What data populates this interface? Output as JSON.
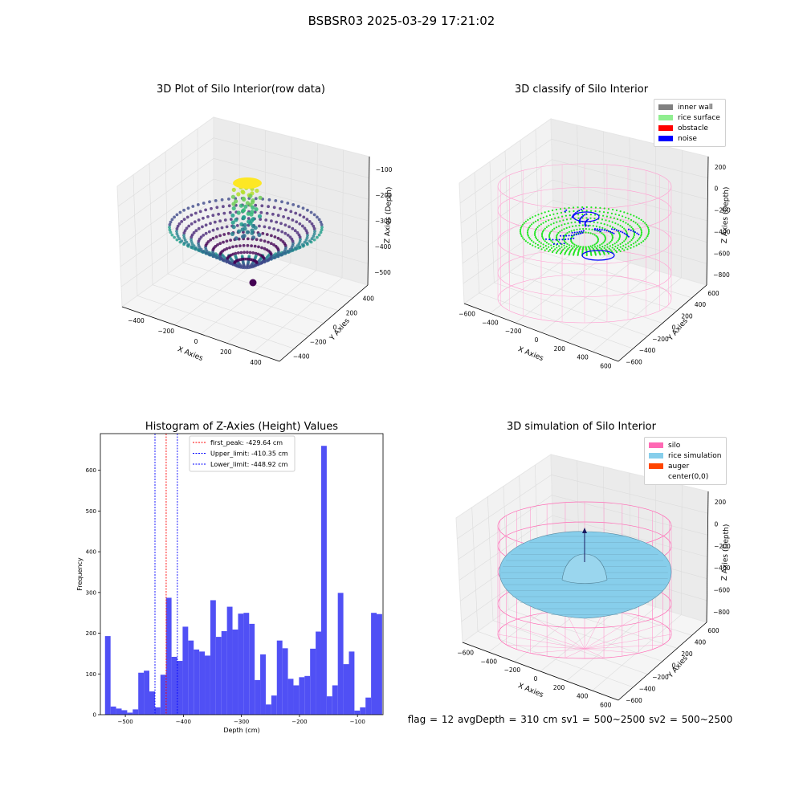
{
  "figure": {
    "suptitle": "BSBSR03 2025-03-29 17:21:02"
  },
  "panels": {
    "raw": {
      "title": "3D Plot of Silo Interior(row data)"
    },
    "classify": {
      "title": "3D classify of Silo Interior",
      "legend": [
        {
          "label": "inner wall",
          "color": "#808080"
        },
        {
          "label": "rice surface",
          "color": "#90ee90"
        },
        {
          "label": "obstacle",
          "color": "#ff0000"
        },
        {
          "label": "noise",
          "color": "#0000ff"
        }
      ]
    },
    "histogram": {
      "title": "Histogram of Z-Axies (Height) Values"
    },
    "simulation": {
      "title": "3D simulation of Silo Interior",
      "legend": [
        {
          "label": "silo",
          "color": "#ff69b4"
        },
        {
          "label": "rice simulation",
          "color": "#87ceeb"
        },
        {
          "label": "auger",
          "color": "#ff4500"
        },
        {
          "label": "center(0,0)",
          "color": "#ffffff"
        }
      ]
    }
  },
  "status_text": "flag = 12   avgDepth = 310 cm  sv1 = 500~2500  sv2 = 500~2500",
  "chart_data": [
    {
      "type": "scatter",
      "dims": 3,
      "title": "3D Plot of Silo Interior(row data)",
      "xlabel": "X Axies",
      "ylabel": "Y Axies",
      "zlabel": "Z Axies (Depth)",
      "xticks": [
        "−400",
        "−200",
        "0",
        "200",
        "400"
      ],
      "yticks": [
        "−400",
        "−200",
        "0",
        "200",
        "400"
      ],
      "zticks": [
        "−500",
        "−400",
        "−300",
        "−200",
        "−100"
      ],
      "colormap": "viridis"
    },
    {
      "type": "scatter",
      "dims": 3,
      "title": "3D classify of Silo Interior",
      "xlabel": "X Axies",
      "ylabel": "Y Axies",
      "zlabel": "Z Axies (Depth)",
      "xticks": [
        "−600",
        "−400",
        "−200",
        "0",
        "200",
        "400",
        "600"
      ],
      "yticks": [
        "−600",
        "−400",
        "−200",
        "0",
        "200",
        "400",
        "600"
      ],
      "zticks": [
        "−800",
        "−600",
        "−400",
        "−200",
        "0",
        "200"
      ],
      "legend_position": "top-right",
      "series": [
        {
          "name": "inner wall",
          "color": "#808080"
        },
        {
          "name": "rice surface",
          "color": "#90ee90"
        },
        {
          "name": "obstacle",
          "color": "#ff0000"
        },
        {
          "name": "noise",
          "color": "#0000ff"
        }
      ]
    },
    {
      "type": "bar",
      "title": "Histogram of Z-Axies (Height) Values",
      "xlabel": "Depth (cm)",
      "ylabel": "Frequency",
      "xlim": [
        -543,
        -56
      ],
      "ylim": [
        0,
        690
      ],
      "xticks": [
        -500,
        -400,
        -300,
        -200,
        -100
      ],
      "xtick_labels": [
        "−500",
        "−400",
        "−300",
        "−200",
        "−100"
      ],
      "yticks": [
        0,
        100,
        200,
        300,
        400,
        500,
        600
      ],
      "yticks_labels": [
        "0",
        "100",
        "200",
        "300",
        "400",
        "500",
        "600"
      ],
      "bin_start": -535,
      "bin_width": 9.55,
      "values": [
        193,
        20,
        15,
        11,
        5,
        13,
        103,
        108,
        57,
        18,
        98,
        287,
        142,
        132,
        216,
        182,
        160,
        155,
        145,
        281,
        191,
        205,
        265,
        209,
        248,
        250,
        223,
        85,
        148,
        25,
        47,
        182,
        163,
        88,
        72,
        92,
        95,
        162,
        204,
        660,
        45,
        72,
        299,
        124,
        155,
        10,
        18,
        42,
        250,
        247
      ],
      "bar_color": "#5050f5",
      "vlines": [
        {
          "label": "first_peak: -429.64 cm",
          "x": -429.64,
          "color": "#ff0000"
        },
        {
          "label": "Upper_limit: -410.35 cm",
          "x": -410.35,
          "color": "#0000ff"
        },
        {
          "label": "Lower_limit: -448.92 cm",
          "x": -448.92,
          "color": "#0000ff"
        }
      ],
      "legend_position": "top-center"
    },
    {
      "type": "surface",
      "dims": 3,
      "title": "3D simulation of Silo Interior",
      "xlabel": "X Axies",
      "ylabel": "Y Axies",
      "zlabel": "Z Axies (Depth)",
      "xticks": [
        "−600",
        "−400",
        "−200",
        "0",
        "200",
        "400",
        "600"
      ],
      "yticks": [
        "−600",
        "−400",
        "−200",
        "0",
        "200",
        "400",
        "600"
      ],
      "zticks": [
        "−800",
        "−600",
        "−400",
        "−200",
        "0",
        "200"
      ],
      "legend_position": "top-right",
      "series": [
        {
          "name": "silo",
          "color": "#ff69b4"
        },
        {
          "name": "rice simulation",
          "color": "#87ceeb"
        },
        {
          "name": "auger",
          "color": "#ff4500"
        },
        {
          "name": "center(0,0)",
          "color": "#ffffff"
        }
      ]
    }
  ]
}
